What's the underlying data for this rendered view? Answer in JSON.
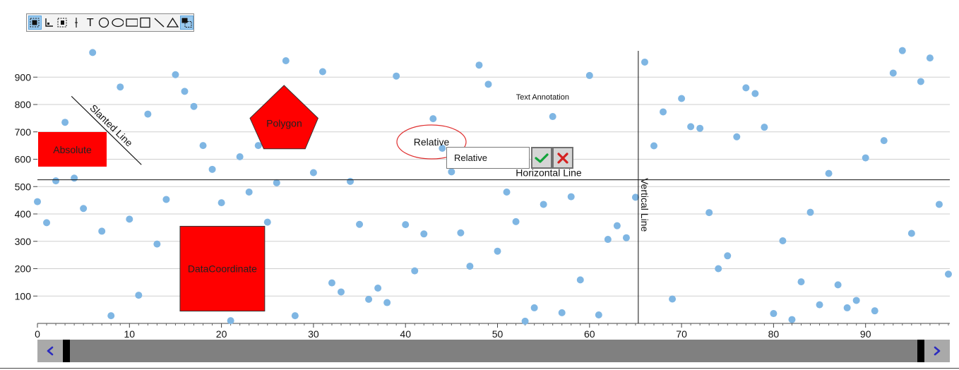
{
  "toolbar": {
    "tools": [
      {
        "name": "select-tool-icon",
        "active": true
      },
      {
        "name": "axis-tool-icon",
        "active": false
      },
      {
        "name": "marquee-tool-icon",
        "active": false
      },
      {
        "name": "vertical-line-tool-icon",
        "active": false
      },
      {
        "name": "text-tool-icon",
        "glyph": "T",
        "active": false
      },
      {
        "name": "circle-tool-icon",
        "active": false
      },
      {
        "name": "ellipse-tool-icon",
        "active": false
      },
      {
        "name": "rectangle-tool-icon",
        "active": false
      },
      {
        "name": "square-tool-icon",
        "active": false
      },
      {
        "name": "line-tool-icon",
        "active": false
      },
      {
        "name": "triangle-tool-icon",
        "active": false
      },
      {
        "name": "layers-tool-icon",
        "active": true
      }
    ]
  },
  "chart_data": {
    "type": "scatter",
    "xlim": [
      0,
      99
    ],
    "ylim": [
      0,
      1000
    ],
    "x_ticks": [
      0,
      10,
      20,
      30,
      40,
      50,
      60,
      70,
      80,
      90
    ],
    "y_ticks": [
      100,
      200,
      300,
      400,
      500,
      600,
      700,
      800,
      900
    ],
    "grid": "horizontal",
    "point_color": "#7fb6e3",
    "series": [
      {
        "points": [
          [
            0,
            445
          ],
          [
            1,
            368
          ],
          [
            2,
            521
          ],
          [
            3,
            735
          ],
          [
            4,
            531
          ],
          [
            5,
            420
          ],
          [
            6,
            990
          ],
          [
            7,
            337
          ],
          [
            8,
            28
          ],
          [
            9,
            864
          ],
          [
            10,
            381
          ],
          [
            11,
            103
          ],
          [
            12,
            765
          ],
          [
            13,
            290
          ],
          [
            14,
            453
          ],
          [
            15,
            909
          ],
          [
            16,
            848
          ],
          [
            17,
            793
          ],
          [
            18,
            650
          ],
          [
            19,
            563
          ],
          [
            20,
            441
          ],
          [
            21,
            10
          ],
          [
            22,
            609
          ],
          [
            23,
            480
          ],
          [
            24,
            650
          ],
          [
            25,
            370
          ],
          [
            26,
            514
          ],
          [
            27,
            960
          ],
          [
            28,
            28
          ],
          [
            29,
            669
          ],
          [
            30,
            551
          ],
          [
            31,
            920
          ],
          [
            32,
            148
          ],
          [
            33,
            115
          ],
          [
            34,
            519
          ],
          [
            35,
            362
          ],
          [
            36,
            88
          ],
          [
            37,
            129
          ],
          [
            38,
            76
          ],
          [
            39,
            904
          ],
          [
            40,
            361
          ],
          [
            41,
            192
          ],
          [
            42,
            327
          ],
          [
            43,
            748
          ],
          [
            44,
            640
          ],
          [
            45,
            554
          ],
          [
            46,
            331
          ],
          [
            47,
            209
          ],
          [
            48,
            944
          ],
          [
            49,
            874
          ],
          [
            50,
            264
          ],
          [
            51,
            480
          ],
          [
            52,
            372
          ],
          [
            53,
            8
          ],
          [
            54,
            57
          ],
          [
            55,
            435
          ],
          [
            56,
            756
          ],
          [
            57,
            39
          ],
          [
            58,
            463
          ],
          [
            59,
            159
          ],
          [
            60,
            906
          ],
          [
            61,
            31
          ],
          [
            62,
            307
          ],
          [
            63,
            357
          ],
          [
            64,
            313
          ],
          [
            65,
            461
          ],
          [
            66,
            955
          ],
          [
            67,
            649
          ],
          [
            68,
            773
          ],
          [
            69,
            89
          ],
          [
            70,
            822
          ],
          [
            71,
            719
          ],
          [
            72,
            713
          ],
          [
            73,
            405
          ],
          [
            74,
            200
          ],
          [
            75,
            247
          ],
          [
            76,
            682
          ],
          [
            77,
            861
          ],
          [
            78,
            840
          ],
          [
            79,
            717
          ],
          [
            80,
            36
          ],
          [
            81,
            302
          ],
          [
            82,
            14
          ],
          [
            83,
            152
          ],
          [
            84,
            406
          ],
          [
            85,
            68
          ],
          [
            86,
            548
          ],
          [
            87,
            141
          ],
          [
            88,
            57
          ],
          [
            89,
            84
          ],
          [
            90,
            605
          ],
          [
            91,
            46
          ],
          [
            92,
            668
          ],
          [
            93,
            915
          ],
          [
            94,
            997
          ],
          [
            95,
            329
          ],
          [
            96,
            884
          ],
          [
            97,
            970
          ],
          [
            98,
            435
          ],
          [
            99,
            180
          ]
        ]
      }
    ],
    "annotations": {
      "absolute": {
        "label": "Absolute",
        "fill": "#ff0000"
      },
      "data_coordinate": {
        "label": "DataCoordinate",
        "x1": 15.5,
        "y1": 45,
        "x2": 24.7,
        "y2": 355,
        "fill": "#ff0000"
      },
      "polygon": {
        "label": "Polygon",
        "fill": "#ff0000",
        "vertices": [
          [
            26.8,
            870
          ],
          [
            30.5,
            750
          ],
          [
            29.1,
            638
          ],
          [
            24.6,
            638
          ],
          [
            23.1,
            750
          ]
        ]
      },
      "slanted_line": {
        "label": "Slanted Line",
        "x1": 3.7,
        "y1": 830,
        "x2": 11.3,
        "y2": 580
      },
      "relative_ellipse": {
        "label": "Relative",
        "stroke": "#e03030"
      },
      "text_annotation": {
        "label": "Text Annotation",
        "x": 54.9,
        "y": 828
      },
      "horizontal_line": {
        "label": "Horizontal Line",
        "y": 525
      },
      "vertical_line": {
        "label": "Vertical Line",
        "x": 65.3
      }
    }
  },
  "editor": {
    "value": "Relative",
    "ok_color": "#12a33a",
    "cancel_color": "#d42020"
  },
  "scrollbar": {
    "left_arrow": "‹",
    "right_arrow": "›",
    "arrow_color": "#2b2bbf"
  }
}
